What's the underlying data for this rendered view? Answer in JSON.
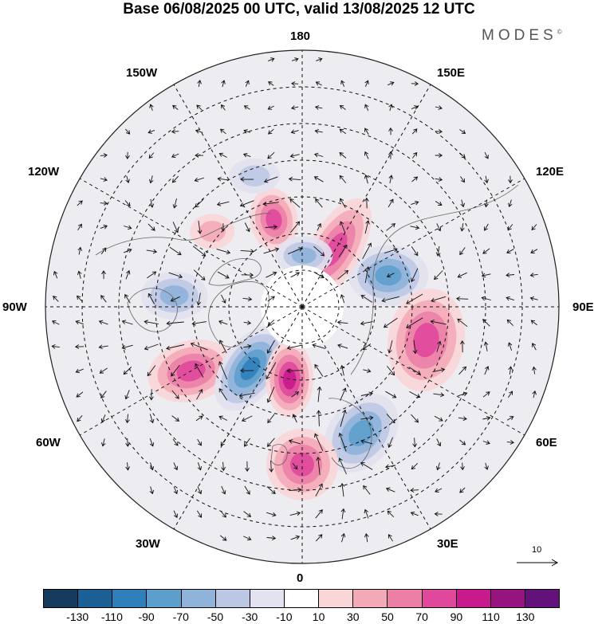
{
  "title": "Base 06/08/2025 00 UTC, valid 13/08/2025 12 UTC",
  "brand": "MODES",
  "brand_mark": "©",
  "longitude_labels": {
    "lon_180": "180",
    "lon_150e": "150E",
    "lon_120e": "120E",
    "lon_90e": "90E",
    "lon_60e": "60E",
    "lon_30e": "30E",
    "lon_0": "0",
    "lon_30w": "30W",
    "lon_60w": "60W",
    "lon_90w": "90W",
    "lon_120w": "120W",
    "lon_150w": "150W"
  },
  "reference_vector": "10",
  "colorbar": {
    "colors": [
      "#163a5c",
      "#1c5f94",
      "#2f7fba",
      "#5d9fcc",
      "#8fb3d9",
      "#bcc8e3",
      "#e2e2f0",
      "#ffffff",
      "#fad6d8",
      "#f3aab8",
      "#ec7fa6",
      "#e0489c",
      "#c81a8c",
      "#951480",
      "#62127a"
    ],
    "ticks": [
      "-130",
      "-110",
      "-90",
      "-70",
      "-50",
      "-30",
      "-10",
      "10",
      "30",
      "50",
      "70",
      "90",
      "110",
      "130"
    ]
  },
  "anomalies": [
    {
      "name": "negative-anomaly-siberia",
      "lon": 110,
      "colat": 25,
      "rx": 50,
      "ry": 38,
      "rot": 0,
      "value": -95
    },
    {
      "name": "positive-anomaly-east-siberia",
      "lon": 150,
      "colat": 18,
      "rx": 32,
      "ry": 72,
      "rot": 30,
      "value": 85
    },
    {
      "name": "positive-anomaly-alaska",
      "lon": -162,
      "colat": 25,
      "rx": 30,
      "ry": 40,
      "rot": -10,
      "value": 90
    },
    {
      "name": "negative-anomaly-beaufort",
      "lon": 178,
      "colat": 14,
      "rx": 36,
      "ry": 24,
      "rot": 0,
      "value": -60
    },
    {
      "name": "negative-anomaly-hudson",
      "lon": -95,
      "colat": 35,
      "rx": 42,
      "ry": 30,
      "rot": 0,
      "value": -75
    },
    {
      "name": "positive-anomaly-labrador",
      "lon": -60,
      "colat": 35,
      "rx": 55,
      "ry": 38,
      "rot": -15,
      "value": 95
    },
    {
      "name": "negative-anomaly-north-atlantic",
      "lon": -40,
      "colat": 22,
      "rx": 35,
      "ry": 60,
      "rot": 35,
      "value": -110
    },
    {
      "name": "positive-anomaly-greenland-sea",
      "lon": -10,
      "colat": 20,
      "rx": 30,
      "ry": 48,
      "rot": 0,
      "value": 110
    },
    {
      "name": "positive-anomaly-west-siberia",
      "lon": 75,
      "colat": 35,
      "rx": 48,
      "ry": 65,
      "rot": 10,
      "value": 90
    },
    {
      "name": "negative-anomaly-europe",
      "lon": 25,
      "colat": 38,
      "rx": 40,
      "ry": 55,
      "rot": 40,
      "value": -85
    },
    {
      "name": "positive-anomaly-eastern-atlantic",
      "lon": 0,
      "colat": 43,
      "rx": 45,
      "ry": 45,
      "rot": 0,
      "value": 80
    },
    {
      "name": "positive-anomaly-north-pacific",
      "lon": -130,
      "colat": 32,
      "rx": 28,
      "ry": 22,
      "rot": 0,
      "value": 50
    },
    {
      "name": "negative-anomaly-central-pacific",
      "lon": -160,
      "colat": 38,
      "rx": 32,
      "ry": 22,
      "rot": 0,
      "value": -40
    }
  ]
}
